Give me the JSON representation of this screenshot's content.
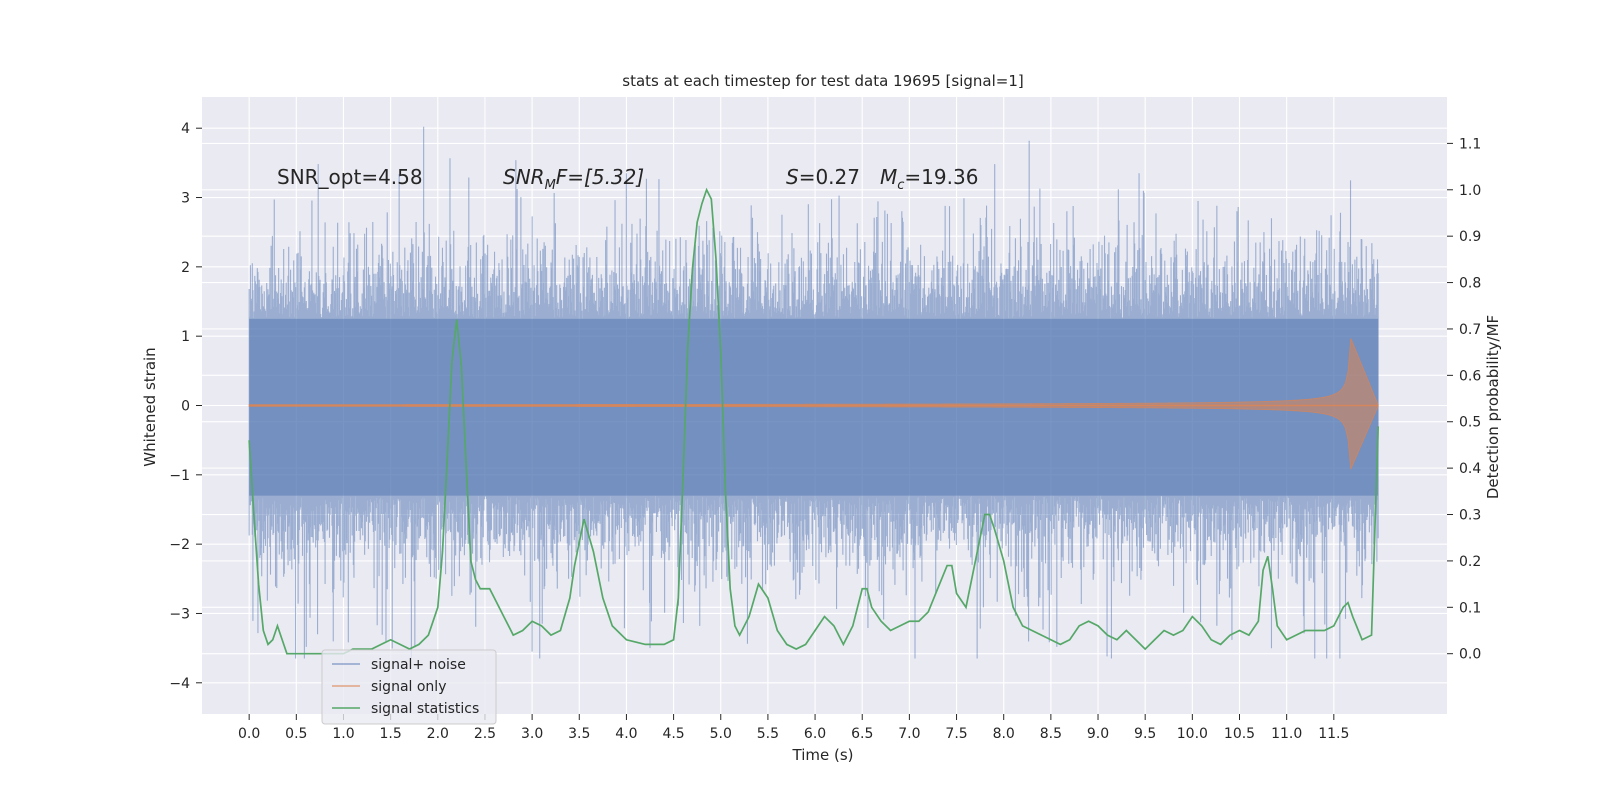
{
  "chart_data": {
    "type": "line",
    "title": "stats at each timestep for test data 19695 [signal=1]",
    "xlabel": "Time (s)",
    "ylabel_left": "Whitened strain",
    "ylabel_right": "Detection probability/MF",
    "xlim": [
      -0.5,
      12.7
    ],
    "ylim_left": [
      -4.45,
      4.45
    ],
    "ylim_right": [
      -0.13,
      1.2
    ],
    "x_ticks": [
      0.0,
      0.5,
      1.0,
      1.5,
      2.0,
      2.5,
      3.0,
      3.5,
      4.0,
      4.5,
      5.0,
      5.5,
      6.0,
      6.5,
      7.0,
      7.5,
      8.0,
      8.5,
      9.0,
      9.5,
      10.0,
      10.5,
      11.0,
      11.5
    ],
    "x_tick_labels": [
      "0.0",
      "0.5",
      "1.0",
      "1.5",
      "2.0",
      "2.5",
      "3.0",
      "3.5",
      "4.0",
      "4.5",
      "5.0",
      "5.5",
      "6.0",
      "6.5",
      "7.0",
      "7.5",
      "8.0",
      "8.5",
      "9.0",
      "9.5",
      "10.0",
      "10.5",
      "11.0",
      "11.5"
    ],
    "y_left_ticks": [
      -4,
      -3,
      -2,
      -1,
      0,
      1,
      2,
      3,
      4
    ],
    "y_left_tick_labels": [
      "−4",
      "−3",
      "−2",
      "−1",
      "0",
      "1",
      "2",
      "3",
      "4"
    ],
    "y_right_ticks": [
      0.0,
      0.1,
      0.2,
      0.3,
      0.4,
      0.5,
      0.6,
      0.7,
      0.8,
      0.9,
      1.0,
      1.1
    ],
    "y_right_tick_labels": [
      "0.0",
      "0.1",
      "0.2",
      "0.3",
      "0.4",
      "0.5",
      "0.6",
      "0.7",
      "0.8",
      "0.9",
      "1.0",
      "1.1"
    ],
    "annotations": {
      "snr_opt": "SNR_opt=4.58",
      "snr_mf_main": "SNR",
      "snr_mf_sub": "M",
      "snr_mf_rest": "F=[5.32]",
      "s_var": "S",
      "s_val": "=0.27",
      "mc_var": "M",
      "mc_sub": "c",
      "mc_val": "=19.36"
    },
    "legend": {
      "position": "lower-left",
      "entries": [
        "signal+ noise",
        "signal only",
        "signal statistics"
      ]
    },
    "colors": {
      "noise": "#4c72b0",
      "signal": "#dd8452",
      "stats": "#55a868",
      "background": "#eaeaf2",
      "grid": "#ffffff"
    },
    "noise_series": {
      "name": "signal+ noise",
      "t_start": 0.0,
      "t_end": 11.97,
      "envelope_upper_typical": 1.25,
      "envelope_lower_typical": -1.3,
      "spike_max": 4.02,
      "spike_min": -3.65
    },
    "signal_series": {
      "name": "signal only",
      "t_start": 0.0,
      "t_merger": 11.68,
      "peak_upper": 0.97,
      "peak_lower": -0.92
    },
    "stats_series": {
      "name": "signal statistics",
      "x": [
        0.0,
        0.05,
        0.1,
        0.15,
        0.2,
        0.25,
        0.3,
        0.35,
        0.4,
        0.5,
        0.6,
        0.7,
        0.8,
        0.9,
        1.0,
        1.1,
        1.2,
        1.3,
        1.4,
        1.5,
        1.6,
        1.7,
        1.8,
        1.9,
        2.0,
        2.05,
        2.1,
        2.15,
        2.2,
        2.25,
        2.3,
        2.35,
        2.4,
        2.45,
        2.5,
        2.55,
        2.6,
        2.7,
        2.8,
        2.9,
        3.0,
        3.1,
        3.2,
        3.3,
        3.4,
        3.45,
        3.55,
        3.65,
        3.75,
        3.85,
        4.0,
        4.2,
        4.4,
        4.5,
        4.55,
        4.6,
        4.65,
        4.7,
        4.75,
        4.8,
        4.85,
        4.9,
        4.95,
        5.0,
        5.05,
        5.1,
        5.15,
        5.2,
        5.3,
        5.4,
        5.5,
        5.6,
        5.7,
        5.8,
        5.9,
        6.0,
        6.1,
        6.2,
        6.3,
        6.4,
        6.5,
        6.55,
        6.6,
        6.7,
        6.8,
        6.9,
        7.0,
        7.1,
        7.2,
        7.3,
        7.4,
        7.45,
        7.5,
        7.6,
        7.7,
        7.8,
        7.85,
        7.9,
        8.0,
        8.1,
        8.2,
        8.3,
        8.4,
        8.5,
        8.6,
        8.7,
        8.8,
        8.9,
        9.0,
        9.1,
        9.2,
        9.3,
        9.4,
        9.5,
        9.6,
        9.7,
        9.8,
        9.9,
        10.0,
        10.1,
        10.2,
        10.3,
        10.4,
        10.5,
        10.6,
        10.7,
        10.75,
        10.8,
        10.85,
        10.9,
        11.0,
        11.1,
        11.2,
        11.3,
        11.4,
        11.5,
        11.6,
        11.65,
        11.7,
        11.8,
        11.9,
        11.97
      ],
      "values": [
        0.46,
        0.3,
        0.15,
        0.05,
        0.02,
        0.03,
        0.06,
        0.03,
        0.0,
        0.0,
        0.0,
        0.0,
        0.0,
        0.0,
        0.0,
        0.01,
        0.01,
        0.01,
        0.02,
        0.03,
        0.02,
        0.01,
        0.02,
        0.04,
        0.1,
        0.22,
        0.42,
        0.63,
        0.72,
        0.62,
        0.41,
        0.2,
        0.16,
        0.14,
        0.14,
        0.14,
        0.12,
        0.08,
        0.04,
        0.05,
        0.07,
        0.06,
        0.04,
        0.05,
        0.12,
        0.19,
        0.29,
        0.22,
        0.12,
        0.06,
        0.03,
        0.02,
        0.02,
        0.03,
        0.12,
        0.38,
        0.66,
        0.83,
        0.93,
        0.97,
        1.0,
        0.98,
        0.85,
        0.65,
        0.35,
        0.14,
        0.06,
        0.04,
        0.08,
        0.15,
        0.12,
        0.05,
        0.02,
        0.01,
        0.02,
        0.05,
        0.08,
        0.06,
        0.02,
        0.06,
        0.14,
        0.14,
        0.1,
        0.07,
        0.05,
        0.06,
        0.07,
        0.07,
        0.09,
        0.14,
        0.19,
        0.19,
        0.13,
        0.1,
        0.2,
        0.3,
        0.3,
        0.27,
        0.2,
        0.1,
        0.06,
        0.05,
        0.04,
        0.03,
        0.02,
        0.03,
        0.06,
        0.07,
        0.06,
        0.04,
        0.03,
        0.05,
        0.03,
        0.01,
        0.03,
        0.05,
        0.04,
        0.05,
        0.08,
        0.06,
        0.03,
        0.02,
        0.04,
        0.05,
        0.04,
        0.07,
        0.18,
        0.21,
        0.14,
        0.06,
        0.03,
        0.04,
        0.05,
        0.05,
        0.05,
        0.06,
        0.1,
        0.11,
        0.08,
        0.03,
        0.04,
        0.49
      ]
    }
  }
}
